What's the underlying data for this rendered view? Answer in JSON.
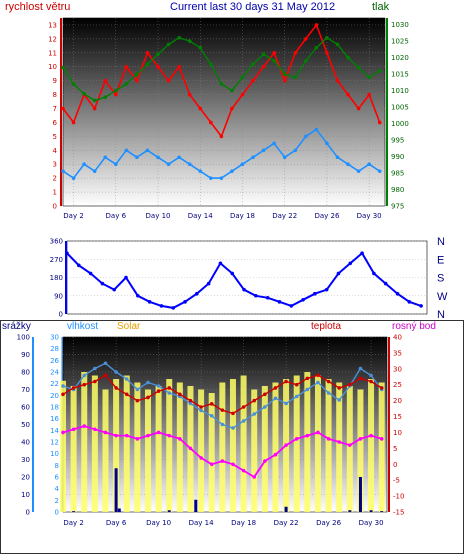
{
  "chart_data": [
    {
      "type": "line",
      "title": "Current last 30 days 31 May 2012",
      "left_axis_label": "rychlost větru",
      "right_axis_label": "tlak",
      "left_ticks": [
        "0",
        "1",
        "2",
        "3",
        "4",
        "5",
        "6",
        "7",
        "8",
        "9",
        "10",
        "11",
        "12",
        "13"
      ],
      "right_ticks": [
        "975",
        "980",
        "985",
        "990",
        "995",
        "1000",
        "1005",
        "1010",
        "1015",
        "1020",
        "1025",
        "1030"
      ],
      "x_ticks": [
        "Day 2",
        "Day 6",
        "Day 10",
        "Day 14",
        "Day 18",
        "Day 22",
        "Day 26",
        "Day 30"
      ],
      "ylim_left": [
        0,
        13.5
      ],
      "ylim_right": [
        975,
        1032
      ],
      "xlim": [
        1,
        31.5
      ],
      "series": [
        {
          "key": "gust",
          "color": "#ff0000",
          "axis": "left",
          "x": [
            1,
            2,
            3,
            4,
            5,
            6,
            7,
            8,
            9,
            10,
            11,
            12,
            13,
            14,
            15,
            16,
            17,
            18,
            19,
            20,
            21,
            22,
            23,
            24,
            25,
            26,
            27,
            28,
            29,
            30,
            31
          ],
          "values": [
            7,
            6,
            8,
            7,
            9,
            8,
            10,
            9,
            11,
            10,
            9,
            10,
            8,
            7,
            6,
            5,
            7,
            8,
            9,
            10,
            11,
            9,
            11,
            12,
            13,
            11,
            9,
            8,
            7,
            8,
            6
          ]
        },
        {
          "key": "wind",
          "color": "#1e90ff",
          "axis": "left",
          "x": [
            1,
            2,
            3,
            4,
            5,
            6,
            7,
            8,
            9,
            10,
            11,
            12,
            13,
            14,
            15,
            16,
            17,
            18,
            19,
            20,
            21,
            22,
            23,
            24,
            25,
            26,
            27,
            28,
            29,
            30,
            31
          ],
          "values": [
            2.5,
            2,
            3,
            2.5,
            3.5,
            3,
            4,
            3.5,
            4,
            3.5,
            3,
            3.5,
            3,
            2.5,
            2,
            2,
            2.5,
            3,
            3.5,
            4,
            4.5,
            3.5,
            4,
            5,
            5.5,
            4.5,
            3.5,
            3,
            2.5,
            3,
            2.5
          ]
        },
        {
          "key": "pressure",
          "color": "#008000",
          "axis": "right",
          "x": [
            1,
            2,
            3,
            4,
            5,
            6,
            7,
            8,
            9,
            10,
            11,
            12,
            13,
            14,
            15,
            16,
            17,
            18,
            19,
            20,
            21,
            22,
            23,
            24,
            25,
            26,
            27,
            28,
            29,
            30,
            31
          ],
          "values": [
            1017,
            1012,
            1009,
            1007,
            1008,
            1010,
            1012,
            1015,
            1018,
            1021,
            1024,
            1026,
            1025,
            1023,
            1018,
            1012,
            1010,
            1014,
            1018,
            1021,
            1019,
            1015,
            1014,
            1019,
            1023,
            1026,
            1024,
            1020,
            1017,
            1014,
            1016
          ]
        }
      ]
    },
    {
      "type": "scatter",
      "title": "",
      "ylabel_ticks": [
        "0",
        "90",
        "180",
        "270",
        "360"
      ],
      "right_labels": [
        "N",
        "W",
        "S",
        "E",
        "N"
      ],
      "x_ticks": [],
      "ylim": [
        0,
        360
      ],
      "xlim": [
        1,
        31.5
      ],
      "series": [
        {
          "key": "direction",
          "color": "#0000ff",
          "x": [
            1,
            2,
            3,
            4,
            5,
            6,
            7,
            8,
            9,
            10,
            11,
            12,
            13,
            14,
            15,
            16,
            17,
            18,
            19,
            20,
            21,
            22,
            23,
            24,
            25,
            26,
            27,
            28,
            29,
            30,
            31
          ],
          "values": [
            300,
            240,
            200,
            150,
            120,
            180,
            90,
            60,
            40,
            30,
            60,
            100,
            150,
            250,
            200,
            120,
            90,
            80,
            60,
            40,
            70,
            100,
            120,
            200,
            250,
            300,
            200,
            150,
            100,
            60,
            40
          ]
        }
      ]
    },
    {
      "type": "line",
      "labels": {
        "rain": "srážky",
        "humidity": "vlhkost",
        "solar": "Solar",
        "temp": "teplota",
        "dew": "rosný bod"
      },
      "left_ticks_rain": [
        "0",
        "10",
        "20",
        "30",
        "40",
        "50",
        "60",
        "70",
        "80",
        "90",
        "100"
      ],
      "left_ticks_hum": [
        "0",
        "2",
        "4",
        "6",
        "8",
        "10",
        "12",
        "14",
        "16",
        "18",
        "20",
        "22",
        "24",
        "26",
        "28",
        "30"
      ],
      "right_ticks": [
        "-15",
        "-10",
        "-5",
        "0",
        "5",
        "10",
        "15",
        "20",
        "25",
        "30",
        "35",
        "40"
      ],
      "x_ticks": [
        "Day 2",
        "Day 6",
        "Day 10",
        "Day 14",
        "Day 18",
        "Day 22",
        "Day 26",
        "Day 30"
      ],
      "ylim_right": [
        -15,
        40
      ],
      "ylim_hum": [
        0,
        100
      ],
      "xlim": [
        1,
        31.5
      ],
      "series": [
        {
          "key": "humidity",
          "color": "#4a90d9",
          "axis": "hum",
          "x": [
            1,
            2,
            3,
            4,
            5,
            6,
            7,
            8,
            9,
            10,
            11,
            12,
            13,
            14,
            15,
            16,
            17,
            18,
            19,
            20,
            21,
            22,
            23,
            24,
            25,
            26,
            27,
            28,
            29,
            30,
            31
          ],
          "values": [
            72,
            70,
            78,
            82,
            85,
            80,
            76,
            70,
            74,
            72,
            68,
            66,
            62,
            58,
            55,
            50,
            48,
            52,
            56,
            60,
            65,
            62,
            66,
            70,
            74,
            68,
            64,
            72,
            82,
            78,
            70
          ]
        },
        {
          "key": "temp",
          "color": "#cc0000",
          "axis": "right",
          "x": [
            1,
            2,
            3,
            4,
            5,
            6,
            7,
            8,
            9,
            10,
            11,
            12,
            13,
            14,
            15,
            16,
            17,
            18,
            19,
            20,
            21,
            22,
            23,
            24,
            25,
            26,
            27,
            28,
            29,
            30,
            31
          ],
          "values": [
            22,
            24,
            25,
            26,
            28,
            24,
            22,
            20,
            21,
            23,
            24,
            22,
            20,
            18,
            19,
            17,
            16,
            18,
            20,
            22,
            24,
            26,
            25,
            27,
            28,
            26,
            24,
            25,
            27,
            26,
            24
          ]
        },
        {
          "key": "dew",
          "color": "#ff00ff",
          "axis": "right",
          "x": [
            1,
            2,
            3,
            4,
            5,
            6,
            7,
            8,
            9,
            10,
            11,
            12,
            13,
            14,
            15,
            16,
            17,
            18,
            19,
            20,
            21,
            22,
            23,
            24,
            25,
            26,
            27,
            28,
            29,
            30,
            31
          ],
          "values": [
            10,
            11,
            12,
            11,
            10,
            9,
            9,
            8,
            9,
            10,
            9,
            8,
            5,
            2,
            0,
            1,
            0,
            -2,
            -4,
            1,
            3,
            6,
            8,
            9,
            10,
            8,
            7,
            6,
            8,
            9,
            8
          ]
        },
        {
          "key": "solar",
          "color": "#ffff66",
          "axis": "rain",
          "x": [
            1,
            2,
            3,
            4,
            5,
            6,
            7,
            8,
            9,
            10,
            11,
            12,
            13,
            14,
            15,
            16,
            17,
            18,
            19,
            20,
            21,
            22,
            23,
            24,
            25,
            26,
            27,
            28,
            29,
            30,
            31
          ],
          "values": [
            75,
            72,
            80,
            78,
            70,
            76,
            78,
            74,
            70,
            72,
            76,
            74,
            72,
            70,
            68,
            74,
            76,
            78,
            70,
            72,
            74,
            76,
            78,
            80,
            78,
            76,
            74,
            72,
            70,
            76,
            74
          ]
        },
        {
          "key": "rain",
          "color": "#00008b",
          "axis": "rain",
          "x": [
            2,
            6,
            6.3,
            11,
            13.5,
            22,
            28,
            29,
            30,
            31
          ],
          "values": [
            0.5,
            25,
            2,
            1,
            7,
            3,
            1,
            20,
            1,
            0.5
          ]
        }
      ]
    }
  ]
}
